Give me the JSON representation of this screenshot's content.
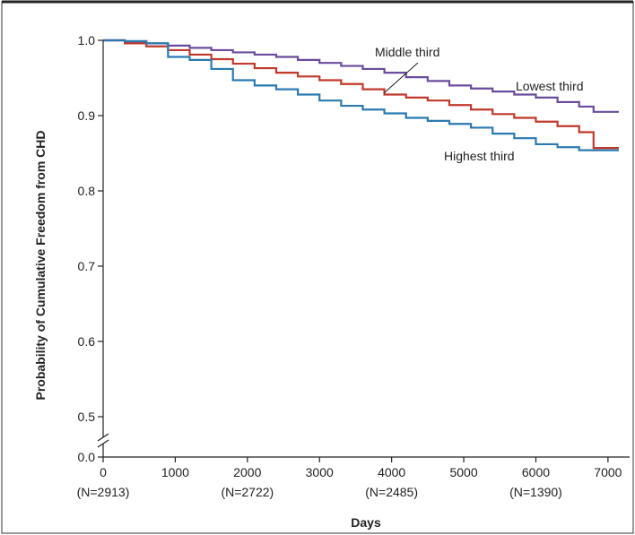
{
  "chart_data": {
    "type": "line",
    "step": true,
    "xlabel": "Days",
    "ylabel": "Probability of Cumulative Freedom from CHD",
    "xlim": [
      0,
      7300
    ],
    "ylim": [
      0.0,
      1.0
    ],
    "y_axis_break": true,
    "x_ticks": [
      0,
      1000,
      2000,
      3000,
      4000,
      5000,
      6000,
      7000
    ],
    "x_tick_labels": [
      "0",
      "1000",
      "2000",
      "3000",
      "4000",
      "5000",
      "6000",
      "7000"
    ],
    "y_ticks": [
      0.0,
      0.5,
      0.6,
      0.7,
      0.8,
      0.9,
      1.0
    ],
    "y_tick_labels": [
      "0.0",
      "0.5",
      "0.6",
      "0.7",
      "0.8",
      "0.9",
      "1.0"
    ],
    "numbers_at_risk": [
      {
        "x": 0,
        "label": "(N=2913)"
      },
      {
        "x": 2000,
        "label": "(N=2722)"
      },
      {
        "x": 4000,
        "label": "(N=2485)"
      },
      {
        "x": 6000,
        "label": "(N=1390)"
      }
    ],
    "series": [
      {
        "name": "Lowest third",
        "color": "#6a4c9c",
        "x": [
          0,
          300,
          600,
          900,
          1200,
          1500,
          1800,
          2100,
          2400,
          2700,
          3000,
          3300,
          3600,
          3900,
          4200,
          4500,
          4800,
          5100,
          5400,
          5700,
          6000,
          6300,
          6600,
          6800,
          7150
        ],
        "y": [
          1.0,
          0.998,
          0.996,
          0.993,
          0.99,
          0.987,
          0.984,
          0.981,
          0.978,
          0.974,
          0.97,
          0.966,
          0.962,
          0.957,
          0.951,
          0.946,
          0.94,
          0.936,
          0.932,
          0.928,
          0.924,
          0.918,
          0.912,
          0.905,
          0.905
        ]
      },
      {
        "name": "Middle third",
        "color": "#c0392b",
        "x": [
          0,
          300,
          600,
          900,
          1200,
          1500,
          1800,
          2100,
          2400,
          2700,
          3000,
          3300,
          3600,
          3900,
          4200,
          4500,
          4800,
          5100,
          5400,
          5700,
          6000,
          6300,
          6600,
          6800,
          7150
        ],
        "y": [
          1.0,
          0.996,
          0.992,
          0.987,
          0.981,
          0.975,
          0.969,
          0.963,
          0.957,
          0.952,
          0.947,
          0.942,
          0.935,
          0.928,
          0.924,
          0.92,
          0.914,
          0.908,
          0.902,
          0.897,
          0.892,
          0.886,
          0.878,
          0.857,
          0.857
        ]
      },
      {
        "name": "Highest third",
        "color": "#2a7ab0",
        "x": [
          0,
          300,
          600,
          900,
          1200,
          1500,
          1800,
          2100,
          2400,
          2700,
          3000,
          3300,
          3600,
          3900,
          4200,
          4500,
          4800,
          5100,
          5400,
          5700,
          6000,
          6300,
          6600,
          6800,
          7150
        ],
        "y": [
          1.0,
          0.999,
          0.996,
          0.978,
          0.974,
          0.962,
          0.947,
          0.94,
          0.935,
          0.928,
          0.92,
          0.913,
          0.908,
          0.903,
          0.897,
          0.893,
          0.889,
          0.884,
          0.876,
          0.87,
          0.862,
          0.858,
          0.854,
          0.854,
          0.854
        ]
      }
    ]
  }
}
